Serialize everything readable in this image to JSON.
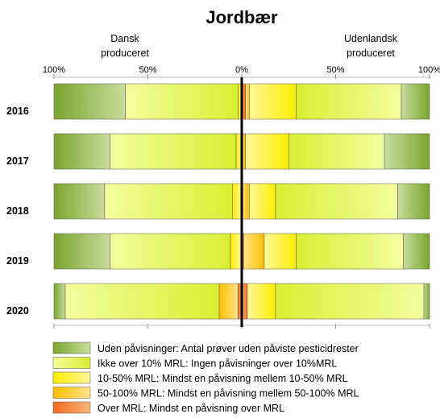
{
  "chart_data": {
    "type": "bar",
    "title": "Jordbær",
    "left_header": [
      "Dansk",
      "produceret"
    ],
    "right_header": [
      "Udenlandsk",
      "produceret"
    ],
    "x_ticks": [
      "100%",
      "50%",
      "0%",
      "50%",
      "100%"
    ],
    "xlim": [
      -100,
      100
    ],
    "categories": [
      "2016",
      "2017",
      "2018",
      "2019",
      "2020"
    ],
    "dansk": [
      {
        "uden": 38,
        "ikke_over_10": 60,
        "mrl_10_50": 2,
        "mrl_50_100": 0,
        "over_mrl": 0
      },
      {
        "uden": 30,
        "ikke_over_10": 67,
        "mrl_10_50": 3,
        "mrl_50_100": 0,
        "over_mrl": 0
      },
      {
        "uden": 27,
        "ikke_over_10": 68,
        "mrl_10_50": 5,
        "mrl_50_100": 0,
        "over_mrl": 0
      },
      {
        "uden": 30,
        "ikke_over_10": 64,
        "mrl_10_50": 6,
        "mrl_50_100": 0,
        "over_mrl": 0
      },
      {
        "uden": 6,
        "ikke_over_10": 82,
        "mrl_10_50": 0,
        "mrl_50_100": 10,
        "over_mrl": 2
      }
    ],
    "udenlandsk": [
      {
        "uden": 15,
        "ikke_over_10": 56,
        "mrl_10_50": 25,
        "mrl_50_100": 2,
        "over_mrl": 2
      },
      {
        "uden": 24,
        "ikke_over_10": 51,
        "mrl_10_50": 23,
        "mrl_50_100": 2,
        "over_mrl": 0
      },
      {
        "uden": 17,
        "ikke_over_10": 65,
        "mrl_10_50": 14,
        "mrl_50_100": 4,
        "over_mrl": 0
      },
      {
        "uden": 14,
        "ikke_over_10": 57,
        "mrl_10_50": 17,
        "mrl_50_100": 11,
        "over_mrl": 1
      },
      {
        "uden": 3,
        "ikke_over_10": 79,
        "mrl_10_50": 15,
        "mrl_50_100": 0,
        "over_mrl": 3
      }
    ],
    "legend": [
      {
        "key": "uden",
        "label": "Uden påvisninger: Antal prøver uden påviste pesticidrester",
        "color": "#7aa52e",
        "color_light": "#c8dc9c"
      },
      {
        "key": "ikke_over_10",
        "label": "Ikke over 10% MRL: Ingen påvisninger over 10%MRL",
        "color": "#f4fd9e",
        "color_light": "#d8ef32"
      },
      {
        "key": "mrl_10_50",
        "label": "10-50% MRL: Mindst en påvisning mellem 10-50% MRL",
        "color": "#ffee00",
        "color_light": "#fff79a"
      },
      {
        "key": "mrl_50_100",
        "label": "50-100% MRL: Mindst en påvisning mellem 50-100% MRL",
        "color": "#ffc000",
        "color_light": "#ffe38a"
      },
      {
        "key": "over_mrl",
        "label": "Over MRL:  Mindst en påvisning over MRL",
        "color": "#f26b1d",
        "color_light": "#ffb47a"
      }
    ],
    "legend_placement": "bottom",
    "grid": false
  }
}
